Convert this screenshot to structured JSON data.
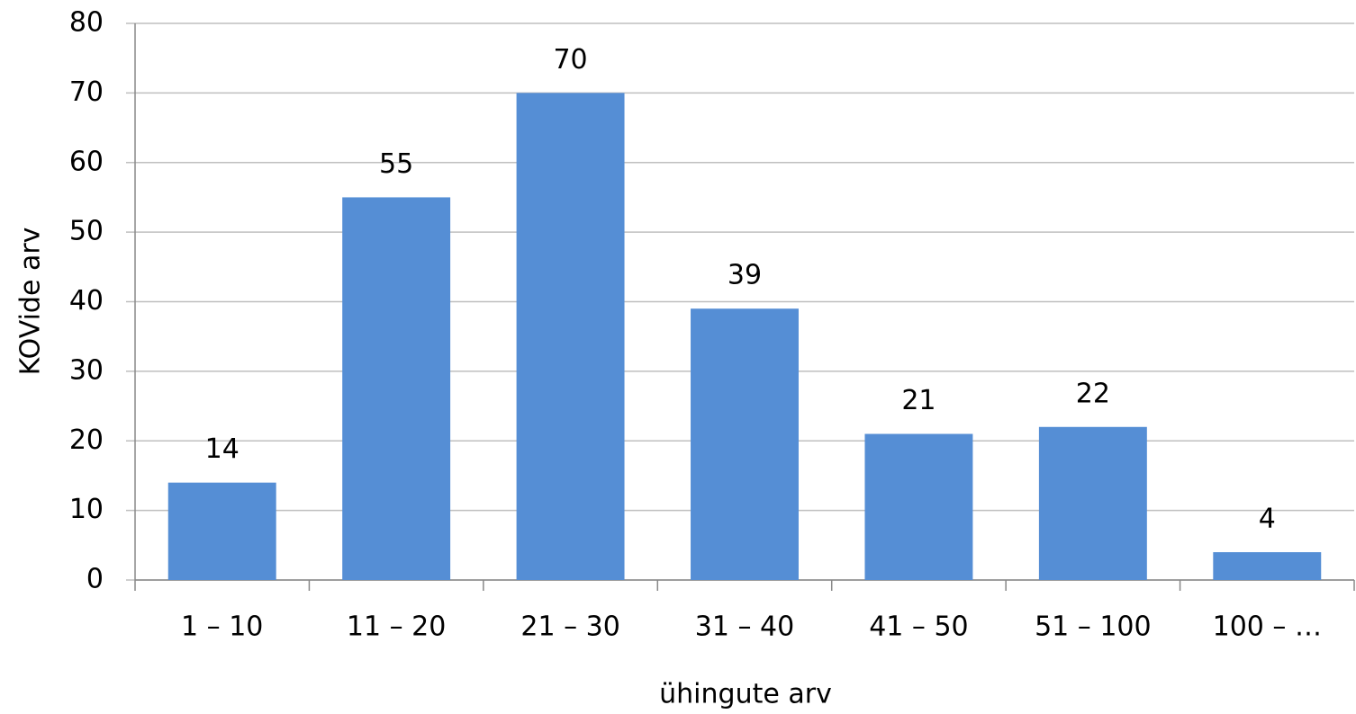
{
  "chart_data": {
    "type": "bar",
    "categories": [
      "1 – 10",
      "11 – 20",
      "21 – 30",
      "31 – 40",
      "41 – 50",
      "51 – 100",
      "100 – …"
    ],
    "values": [
      14,
      55,
      70,
      39,
      21,
      22,
      4
    ],
    "color": "#558ed5",
    "x_label": "ühingute arv",
    "y_label": "KOVide arv",
    "ylim": [
      0,
      80
    ],
    "yticks": [
      0,
      10,
      20,
      30,
      40,
      50,
      60,
      70,
      80
    ],
    "grid": true
  }
}
